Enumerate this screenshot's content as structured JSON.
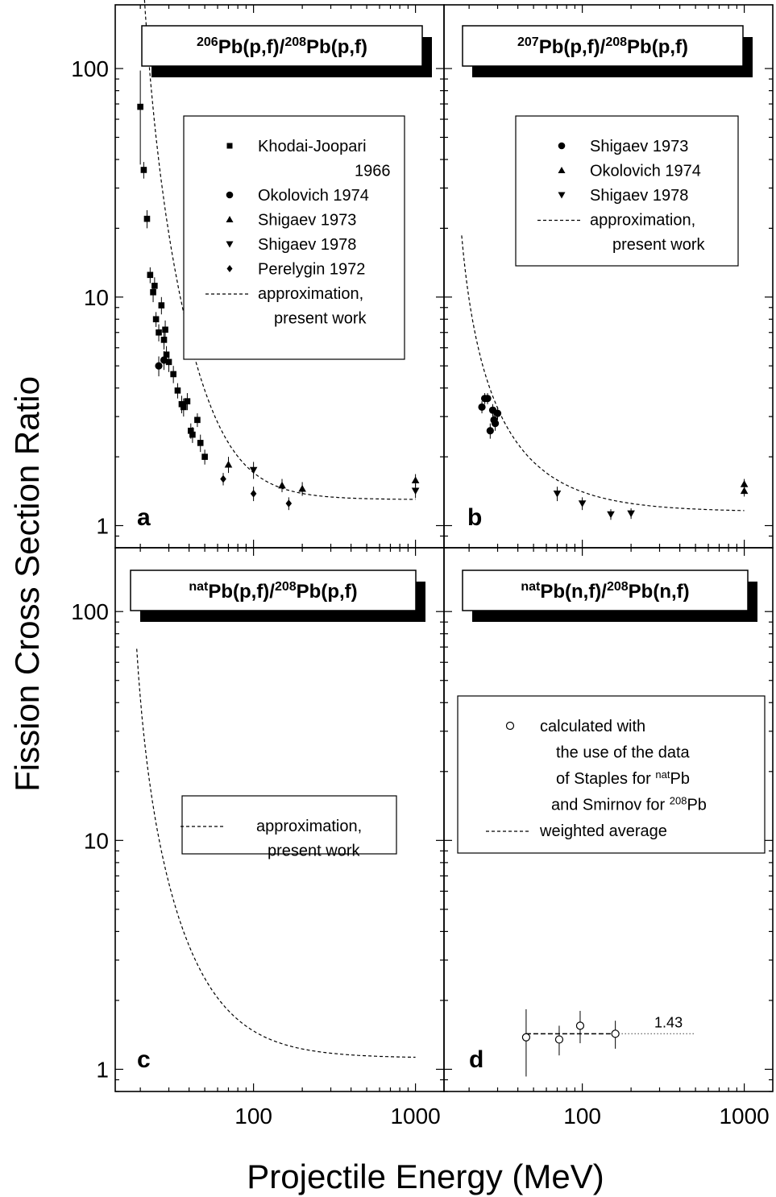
{
  "figure": {
    "ylabel": "Fission Cross Section Ratio",
    "xlabel": "Projectile Energy (MeV)"
  },
  "chart_data": [
    {
      "type": "scatter",
      "panel": "a",
      "title": {
        "iso1": "206",
        "t1": "Pb(p,f)/",
        "iso2": "208",
        "t2": "Pb(p,f)"
      },
      "xscale": "log",
      "yscale": "log",
      "xlim": [
        14,
        1500
      ],
      "ylim": [
        0.8,
        190
      ],
      "yticks": [
        {
          "v": 1,
          "label": "1"
        },
        {
          "v": 10,
          "label": "10"
        },
        {
          "v": 100,
          "label": "100"
        }
      ],
      "xticks": [],
      "series": [
        {
          "name": "Khodai-Joopari 1966",
          "marker": "square",
          "points": [
            [
              20,
              68,
              30
            ],
            [
              21,
              36,
              3
            ],
            [
              22,
              22,
              2
            ],
            [
              23,
              12.5,
              1
            ],
            [
              24,
              10.5,
              1
            ],
            [
              24.5,
              11.2,
              1
            ],
            [
              25,
              8,
              0.6
            ],
            [
              26,
              7,
              0.6
            ],
            [
              27,
              9.2,
              0.8
            ],
            [
              28,
              6.5,
              0.6
            ],
            [
              28.5,
              7.2,
              0.7
            ],
            [
              29,
              5.6,
              0.5
            ],
            [
              30,
              5.2,
              0.5
            ],
            [
              32,
              4.6,
              0.4
            ],
            [
              34,
              3.9,
              0.3
            ],
            [
              36,
              3.4,
              0.3
            ],
            [
              37,
              3.3,
              0.3
            ],
            [
              39,
              3.5,
              0.3
            ],
            [
              41,
              2.6,
              0.2
            ],
            [
              42,
              2.5,
              0.2
            ],
            [
              45,
              2.9,
              0.2
            ],
            [
              47,
              2.3,
              0.2
            ],
            [
              50,
              2.0,
              0.15
            ]
          ]
        },
        {
          "name": "Okolovich 1974",
          "marker": "circle",
          "points": [
            [
              26,
              5.0,
              0.5
            ],
            [
              28,
              5.3,
              0.5
            ]
          ]
        },
        {
          "name": "Shigaev 1973",
          "marker": "triangle-up",
          "points": [
            [
              70,
              1.85,
              0.15
            ],
            [
              150,
              1.5,
              0.1
            ],
            [
              200,
              1.45,
              0.1
            ],
            [
              1000,
              1.58,
              0.1
            ]
          ]
        },
        {
          "name": "Shigaev 1978",
          "marker": "triangle-down",
          "points": [
            [
              100,
              1.75,
              0.15
            ],
            [
              1000,
              1.42,
              0.1
            ]
          ]
        },
        {
          "name": "Perelygin 1972",
          "marker": "diamond",
          "points": [
            [
              65,
              1.6,
              0.1
            ],
            [
              100,
              1.38,
              0.1
            ],
            [
              165,
              1.25,
              0.08
            ]
          ]
        }
      ],
      "curve": {
        "name": "approximation, present work",
        "A": 1.3,
        "B": 7.64,
        "E0": 19,
        "p": 2
      },
      "legend": [
        {
          "marker": "square",
          "label": "Khodai-Joopari",
          "label2": "1966"
        },
        {
          "marker": "circle",
          "label": "Okolovich 1974"
        },
        {
          "marker": "triangle-up",
          "label": "Shigaev 1973"
        },
        {
          "marker": "triangle-down",
          "label": "Shigaev 1978"
        },
        {
          "marker": "diamond",
          "label": "Perelygin 1972"
        },
        {
          "marker": "dash",
          "label": "approximation,",
          "label2": "present work"
        }
      ]
    },
    {
      "type": "scatter",
      "panel": "b",
      "title": {
        "iso1": "207",
        "t1": "Pb(p,f)/",
        "iso2": "208",
        "t2": "Pb(p,f)"
      },
      "xscale": "log",
      "yscale": "log",
      "xlim": [
        14,
        1500
      ],
      "ylim": [
        0.8,
        190
      ],
      "yticks": [],
      "xticks": [],
      "series": [
        {
          "name": "Shigaev 1973",
          "marker": "circle",
          "points": [
            [
              24,
              3.3,
              0.2
            ],
            [
              25,
              3.6,
              0.2
            ],
            [
              26,
              3.6,
              0.2
            ],
            [
              27,
              2.6,
              0.2
            ],
            [
              28,
              3.2,
              0.2
            ],
            [
              28.5,
              2.9,
              0.2
            ],
            [
              29,
              2.8,
              0.2
            ],
            [
              30,
              3.1,
              0.2
            ]
          ]
        },
        {
          "name": "Okolovich 1974",
          "marker": "triangle-up",
          "points": [
            [
              1000,
              1.52,
              0.08
            ],
            [
              1000,
              1.42,
              0.08
            ]
          ]
        },
        {
          "name": "Shigaev 1978",
          "marker": "triangle-down",
          "points": [
            [
              70,
              1.38,
              0.1
            ],
            [
              100,
              1.25,
              0.08
            ],
            [
              150,
              1.12,
              0.06
            ],
            [
              200,
              1.13,
              0.06
            ]
          ]
        }
      ],
      "curve": {
        "name": "approximation, present work",
        "A": 1.15,
        "B": 1.75,
        "E0": 17,
        "p": 1.2
      },
      "legend": [
        {
          "marker": "circle",
          "label": "Shigaev 1973"
        },
        {
          "marker": "triangle-up",
          "label": "Okolovich 1974"
        },
        {
          "marker": "triangle-down",
          "label": "Shigaev 1978"
        },
        {
          "marker": "dash",
          "label": "approximation,",
          "label2": "present work"
        }
      ]
    },
    {
      "type": "line",
      "panel": "c",
      "title": {
        "iso1": "nat",
        "t1": "Pb(p,f)/",
        "iso2": "208",
        "t2": "Pb(p,f)"
      },
      "xscale": "log",
      "yscale": "log",
      "xlim": [
        14,
        1500
      ],
      "ylim": [
        0.8,
        190
      ],
      "yticks": [
        {
          "v": 1,
          "label": "1"
        },
        {
          "v": 10,
          "label": "10"
        },
        {
          "v": 100,
          "label": "100"
        }
      ],
      "xticks": [
        {
          "v": 100,
          "label": "100"
        },
        {
          "v": 1000,
          "label": "1000"
        }
      ],
      "series": [],
      "curve": {
        "name": "approximation, present work",
        "A": 1.12,
        "B": 3.5,
        "E0": 18,
        "p": 1.5
      },
      "legend": [
        {
          "marker": "dash",
          "label": "approximation,",
          "label2": "present work"
        }
      ]
    },
    {
      "type": "scatter",
      "panel": "d",
      "title": {
        "iso1": "nat",
        "t1": "Pb(n,f)/",
        "iso2": "208",
        "t2": "Pb(n,f)"
      },
      "xscale": "log",
      "yscale": "log",
      "xlim": [
        14,
        1500
      ],
      "ylim": [
        0.8,
        190
      ],
      "yticks": [],
      "xticks": [
        {
          "v": 100,
          "label": "100"
        },
        {
          "v": 1000,
          "label": "1000"
        }
      ],
      "series": [
        {
          "name": "calculated with the use of the data of Staples for natPb and Smirnov for 208Pb",
          "marker": "open-circle",
          "points": [
            [
              45,
              1.38,
              0.45
            ],
            [
              72,
              1.35,
              0.2
            ],
            [
              97,
              1.55,
              0.25
            ],
            [
              160,
              1.43,
              0.2
            ]
          ]
        }
      ],
      "hline": {
        "name": "weighted average",
        "value": 1.43,
        "label": "1.43",
        "x_dashed": [
          45,
          160
        ],
        "x_dotted": [
          160,
          500
        ]
      },
      "legend": [
        {
          "marker": "open-circle",
          "label": "calculated with"
        },
        {
          "marker": "none",
          "label": "the use of the data"
        },
        {
          "marker": "none",
          "label": "of Staples for ",
          "sup": "nat",
          "label_after": "Pb"
        },
        {
          "marker": "none",
          "label": "and Smirnov for ",
          "sup": "208",
          "label_after": "Pb"
        },
        {
          "marker": "dash",
          "label": "weighted average"
        }
      ]
    }
  ]
}
